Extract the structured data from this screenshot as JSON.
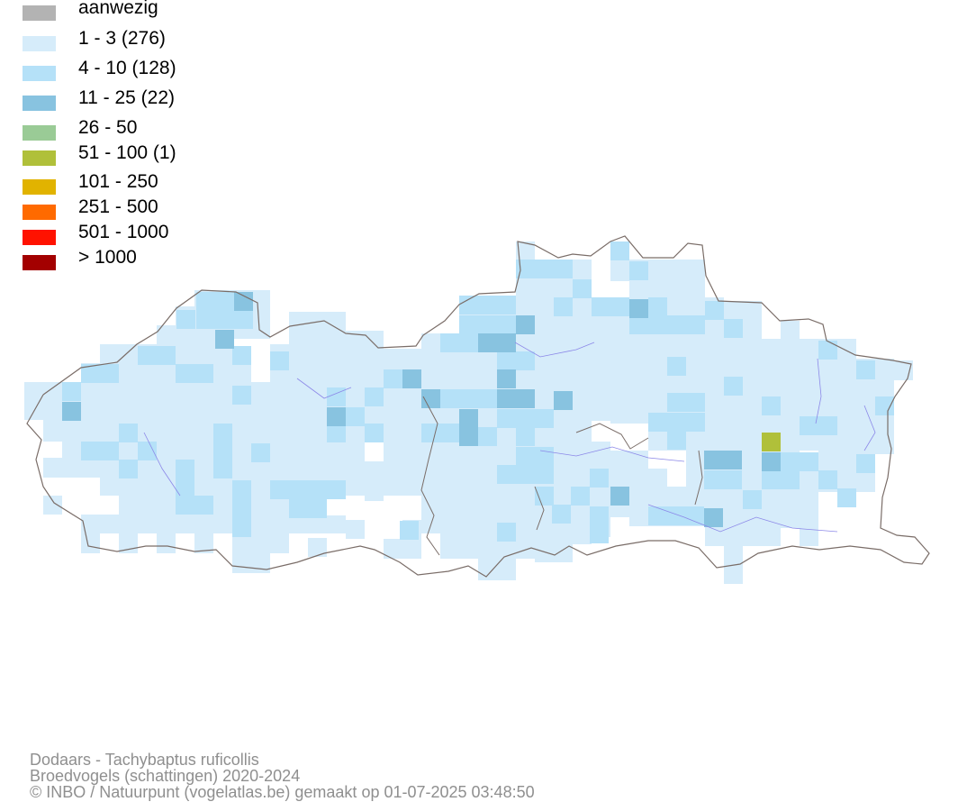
{
  "legend": [
    {
      "label": "aanwezig",
      "color": "#b3b3b3"
    },
    {
      "label": "1 - 3 (276)",
      "color": "#d6ecfa"
    },
    {
      "label": "4 - 10 (128)",
      "color": "#b5e1f8"
    },
    {
      "label": "11 - 25 (22)",
      "color": "#88c3e0"
    },
    {
      "label": "26 - 50",
      "color": "#9acb96"
    },
    {
      "label": "51 - 100 (1)",
      "color": "#b0c03a"
    },
    {
      "label": "101 - 250",
      "color": "#e1b300"
    },
    {
      "label": "251 - 500",
      "color": "#ff6a00"
    },
    {
      "label": "501 - 1000",
      "color": "#ff1200"
    },
    {
      "label": "> 1000",
      "color": "#a30000"
    }
  ],
  "footer": {
    "species": "Dodaars - Tachybaptus ruficollis",
    "dataset": "Broedvogels (schattingen) 2020-2024",
    "credit": "© INBO / Natuurpunt (vogelatlas.be) gemaakt op 01-07-2025 03:48:50"
  }
}
